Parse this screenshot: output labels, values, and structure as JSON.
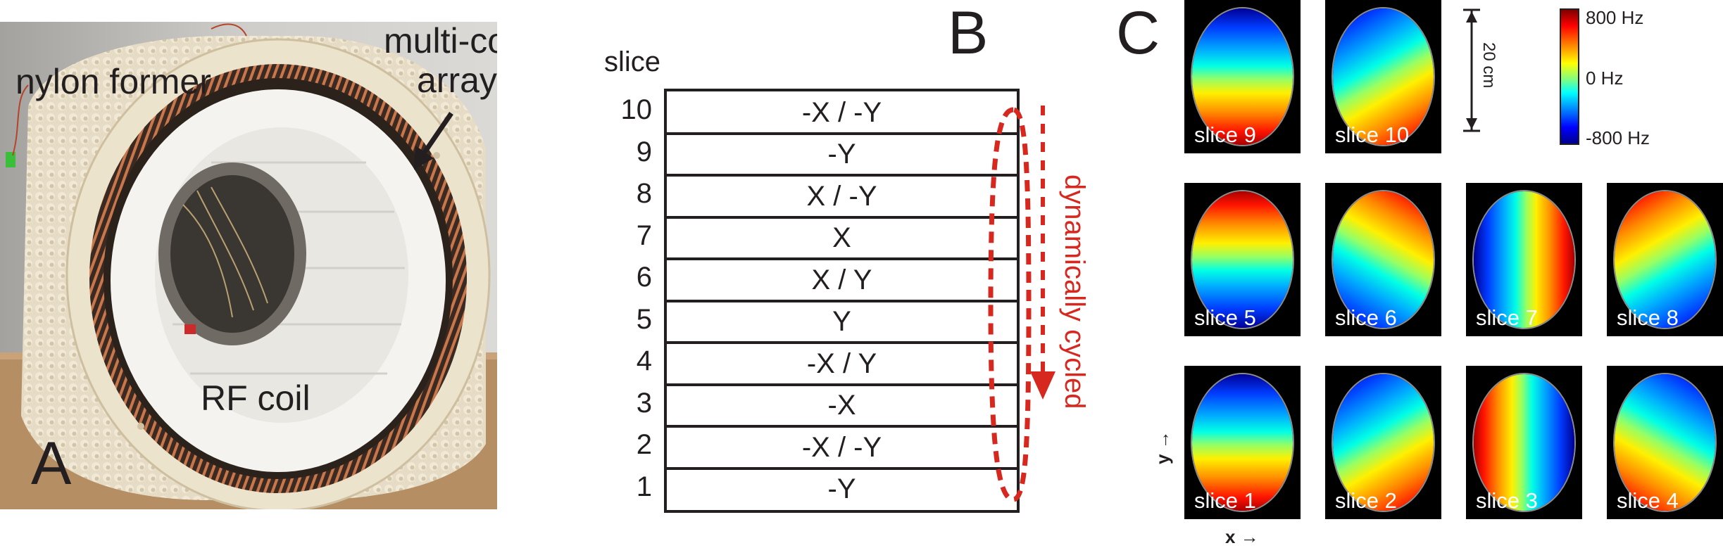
{
  "panel_a": {
    "letter": "A",
    "labels": {
      "nylon_former": "nylon former",
      "multi_coil_line1": "multi-coil",
      "multi_coil_line2": "array",
      "rf_coil": "RF coil"
    }
  },
  "panel_b": {
    "letter": "B",
    "column_header": "slice",
    "rows": [
      {
        "slice": "10",
        "gradient": "-X / -Y"
      },
      {
        "slice": "9",
        "gradient": "-Y"
      },
      {
        "slice": "8",
        "gradient": "X / -Y"
      },
      {
        "slice": "7",
        "gradient": "X"
      },
      {
        "slice": "6",
        "gradient": "X / Y"
      },
      {
        "slice": "5",
        "gradient": "Y"
      },
      {
        "slice": "4",
        "gradient": "-X / Y"
      },
      {
        "slice": "3",
        "gradient": "-X"
      },
      {
        "slice": "2",
        "gradient": "-X / -Y"
      },
      {
        "slice": "1",
        "gradient": "-Y"
      }
    ],
    "cycle_label": "dynamically cycled",
    "cycle_color": "#d7281f"
  },
  "panel_c": {
    "letter": "C",
    "scale_bar_label": "20 cm",
    "colorbar": {
      "max_label": "800 Hz",
      "mid_label": "0 Hz",
      "min_label": "-800 Hz",
      "colormap": "jet"
    },
    "axis_y_label": "y →",
    "axis_x_label": "x →",
    "maps": [
      {
        "label": "slice 9",
        "gradient_angle_deg": 0
      },
      {
        "label": "slice 10",
        "gradient_angle_deg": 330
      },
      {
        "label": "slice 5",
        "gradient_angle_deg": 180
      },
      {
        "label": "slice 6",
        "gradient_angle_deg": 210
      },
      {
        "label": "slice 7",
        "gradient_angle_deg": 270
      },
      {
        "label": "slice 8",
        "gradient_angle_deg": 150
      },
      {
        "label": "slice 1",
        "gradient_angle_deg": 0
      },
      {
        "label": "slice 2",
        "gradient_angle_deg": 330
      },
      {
        "label": "slice 3",
        "gradient_angle_deg": 90
      },
      {
        "label": "slice 4",
        "gradient_angle_deg": 30
      }
    ]
  }
}
